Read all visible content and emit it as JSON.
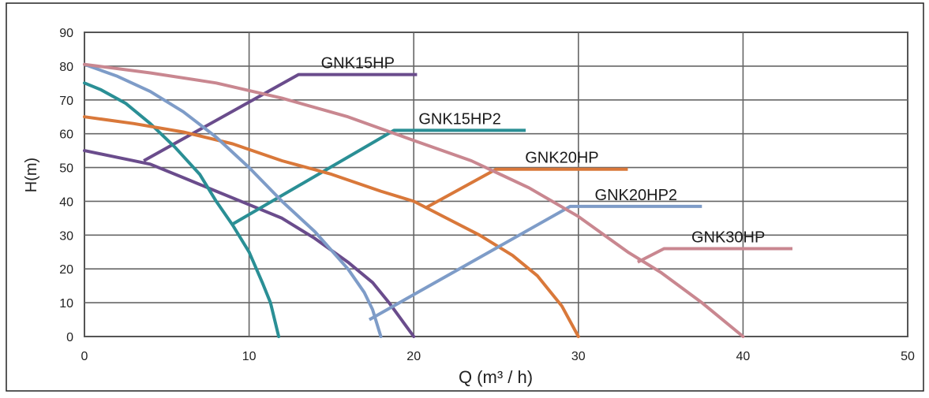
{
  "chart_data": {
    "type": "line",
    "title": "",
    "xlabel": "Q (m³ / h)",
    "ylabel": "H(m)",
    "xlim": [
      0,
      50
    ],
    "ylim": [
      0,
      90
    ],
    "x_ticks": [
      0,
      10,
      20,
      30,
      40,
      50
    ],
    "y_ticks": [
      0,
      10,
      20,
      30,
      40,
      50,
      60,
      70,
      80,
      90
    ],
    "grid": true,
    "legend": "callout labels attached to each curve",
    "series": [
      {
        "name": "GNK15HP",
        "color": "#6a4c8c",
        "points": [
          [
            0,
            55
          ],
          [
            2,
            53
          ],
          [
            4,
            51
          ],
          [
            6,
            47
          ],
          [
            8,
            43
          ],
          [
            10,
            39
          ],
          [
            12,
            35
          ],
          [
            14,
            29
          ],
          [
            16,
            22
          ],
          [
            17.5,
            16
          ],
          [
            18.5,
            10
          ],
          [
            20,
            0
          ]
        ],
        "leader": [
          [
            3.6,
            52
          ],
          [
            13,
            77.5
          ],
          [
            20.2,
            77.5
          ]
        ]
      },
      {
        "name": "GNK15HP2",
        "color": "#2a8f95",
        "points": [
          [
            0,
            75
          ],
          [
            1,
            73
          ],
          [
            2.5,
            69
          ],
          [
            4,
            63
          ],
          [
            5.5,
            56
          ],
          [
            7,
            48
          ],
          [
            8,
            40
          ],
          [
            9,
            33
          ],
          [
            10,
            25
          ],
          [
            10.8,
            16
          ],
          [
            11.3,
            10
          ],
          [
            11.8,
            0
          ]
        ],
        "leader": [
          [
            8.9,
            33
          ],
          [
            18.8,
            61
          ],
          [
            26.8,
            61
          ]
        ]
      },
      {
        "name": "GNK20HP",
        "color": "#d9783a",
        "points": [
          [
            0,
            65
          ],
          [
            3,
            63
          ],
          [
            6,
            60.5
          ],
          [
            9,
            57
          ],
          [
            12,
            52
          ],
          [
            15,
            48
          ],
          [
            18,
            43
          ],
          [
            20,
            40
          ],
          [
            22,
            35
          ],
          [
            24,
            30
          ],
          [
            26,
            24
          ],
          [
            27.5,
            18
          ],
          [
            29,
            9
          ],
          [
            30,
            0
          ]
        ],
        "leader": [
          [
            20.7,
            38
          ],
          [
            25,
            49.5
          ],
          [
            33,
            49.5
          ]
        ]
      },
      {
        "name": "GNK20HP2",
        "color": "#7e9cc8",
        "points": [
          [
            0,
            80.5
          ],
          [
            2,
            77
          ],
          [
            4,
            72.5
          ],
          [
            6,
            66.5
          ],
          [
            8,
            59
          ],
          [
            10,
            50
          ],
          [
            12,
            40
          ],
          [
            14,
            31
          ],
          [
            16,
            20
          ],
          [
            17,
            13
          ],
          [
            17.5,
            8
          ],
          [
            18,
            0
          ]
        ],
        "leader": [
          [
            17.3,
            5
          ],
          [
            29.5,
            38.5
          ],
          [
            37.5,
            38.5
          ]
        ]
      },
      {
        "name": "GNK30HP",
        "color": "#c98790",
        "points": [
          [
            0,
            80.5
          ],
          [
            4,
            78
          ],
          [
            8,
            75
          ],
          [
            12,
            70.5
          ],
          [
            16,
            65
          ],
          [
            20,
            58
          ],
          [
            23.5,
            52
          ],
          [
            27,
            44
          ],
          [
            30,
            35.5
          ],
          [
            33,
            25
          ],
          [
            35,
            19
          ],
          [
            37.5,
            10
          ],
          [
            40,
            0
          ]
        ],
        "leader": [
          [
            33.6,
            22
          ],
          [
            35.2,
            26
          ],
          [
            43,
            26
          ]
        ]
      }
    ]
  }
}
